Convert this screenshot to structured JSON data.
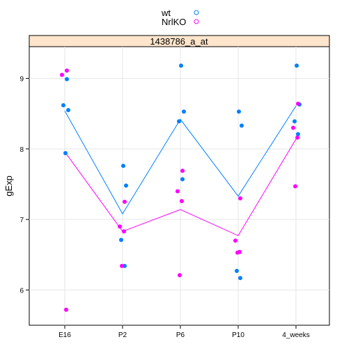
{
  "chart_data": {
    "type": "scatter",
    "panel_title": "1438786_a_at",
    "ylabel": "gExp",
    "xlabel": "",
    "categories": [
      "E16",
      "P2",
      "P6",
      "P10",
      "4_weeks"
    ],
    "ylim": [
      5.5,
      9.45
    ],
    "yticks": [
      6,
      7,
      8,
      9
    ],
    "grid": true,
    "legend_position": "top-center",
    "series": [
      {
        "name": "wt",
        "color": "#0080ff",
        "points": [
          [
            "E16",
            7.94
          ],
          [
            "E16",
            8.55
          ],
          [
            "E16",
            8.62
          ],
          [
            "E16",
            8.99
          ],
          [
            "P2",
            7.76
          ],
          [
            "P2",
            7.48
          ],
          [
            "P2",
            6.71
          ],
          [
            "P2",
            6.34
          ],
          [
            "P6",
            9.18
          ],
          [
            "P6",
            8.53
          ],
          [
            "P6",
            8.39
          ],
          [
            "P6",
            7.57
          ],
          [
            "P10",
            8.53
          ],
          [
            "P10",
            8.33
          ],
          [
            "P10",
            6.27
          ],
          [
            "P10",
            6.17
          ],
          [
            "4_weeks",
            9.18
          ],
          [
            "4_weeks",
            8.63
          ],
          [
            "4_weeks",
            8.39
          ],
          [
            "4_weeks",
            8.21
          ]
        ],
        "means": [
          8.54,
          7.08,
          8.42,
          7.33,
          8.61
        ]
      },
      {
        "name": "NrlKO",
        "color": "#ff00ff",
        "points": [
          [
            "E16",
            9.11
          ],
          [
            "E16",
            9.05
          ],
          [
            "E16",
            5.72
          ],
          [
            "P2",
            7.25
          ],
          [
            "P2",
            6.9
          ],
          [
            "P2",
            6.83
          ],
          [
            "P2",
            6.34
          ],
          [
            "P6",
            7.69
          ],
          [
            "P6",
            7.4
          ],
          [
            "P6",
            7.26
          ],
          [
            "P6",
            6.21
          ],
          [
            "P10",
            7.3
          ],
          [
            "P10",
            6.7
          ],
          [
            "P10",
            6.54
          ],
          [
            "P10",
            6.53
          ],
          [
            "4_weeks",
            8.64
          ],
          [
            "4_weeks",
            8.3
          ],
          [
            "4_weeks",
            8.16
          ],
          [
            "4_weeks",
            7.47
          ]
        ],
        "means": [
          7.96,
          6.83,
          7.14,
          6.77,
          8.14
        ]
      }
    ]
  }
}
